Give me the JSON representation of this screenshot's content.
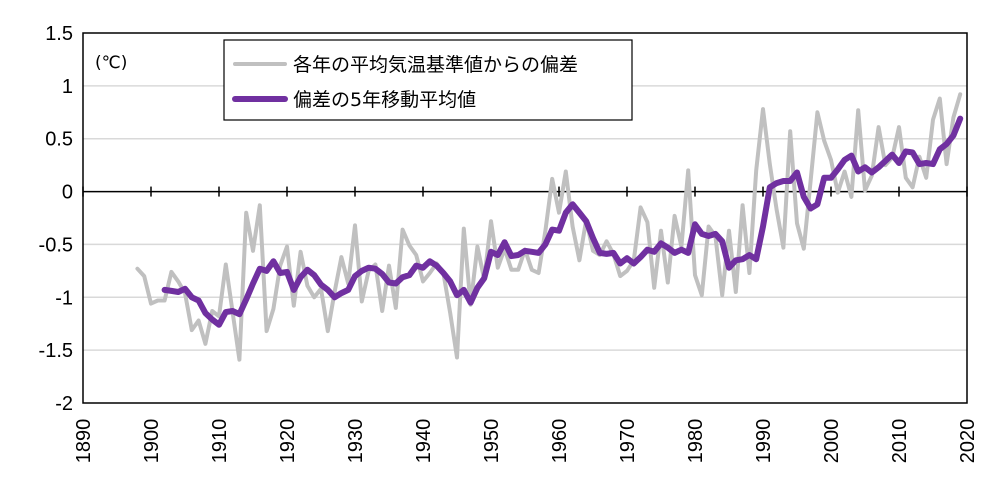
{
  "chart_data": {
    "type": "line",
    "unit_label": "(℃)",
    "xlim": [
      1890,
      2020
    ],
    "ylim": [
      -2,
      1.5
    ],
    "x_ticks": [
      1890,
      1900,
      1910,
      1920,
      1930,
      1940,
      1950,
      1960,
      1970,
      1980,
      1990,
      2000,
      2010,
      2020
    ],
    "y_ticks": [
      1.5,
      1,
      0.5,
      0,
      -0.5,
      -1,
      -1.5,
      -2
    ],
    "grid": true,
    "legend_position": "top-center",
    "series": [
      {
        "name": "各年の平均気温基準値からの偏差",
        "color": "#c0c0c0",
        "x": [
          1898,
          1899,
          1900,
          1901,
          1902,
          1903,
          1904,
          1905,
          1906,
          1907,
          1908,
          1909,
          1910,
          1911,
          1912,
          1913,
          1914,
          1915,
          1916,
          1917,
          1918,
          1919,
          1920,
          1921,
          1922,
          1923,
          1924,
          1925,
          1926,
          1927,
          1928,
          1929,
          1930,
          1931,
          1932,
          1933,
          1934,
          1935,
          1936,
          1937,
          1938,
          1939,
          1940,
          1941,
          1942,
          1943,
          1944,
          1945,
          1946,
          1947,
          1948,
          1949,
          1950,
          1951,
          1952,
          1953,
          1954,
          1955,
          1956,
          1957,
          1958,
          1959,
          1960,
          1961,
          1962,
          1963,
          1964,
          1965,
          1966,
          1967,
          1968,
          1969,
          1970,
          1971,
          1972,
          1973,
          1974,
          1975,
          1976,
          1977,
          1978,
          1979,
          1980,
          1981,
          1982,
          1983,
          1984,
          1985,
          1986,
          1987,
          1988,
          1989,
          1990,
          1991,
          1992,
          1993,
          1994,
          1995,
          1996,
          1997,
          1998,
          1999,
          2000,
          2001,
          2002,
          2003,
          2004,
          2005,
          2006,
          2007,
          2008,
          2009,
          2010,
          2011,
          2012,
          2013,
          2014,
          2015,
          2016,
          2017,
          2018,
          2019
        ],
        "values": [
          -0.73,
          -0.8,
          -1.06,
          -1.03,
          -1.03,
          -0.76,
          -0.85,
          -0.96,
          -1.31,
          -1.22,
          -1.44,
          -1.13,
          -1.18,
          -0.69,
          -1.14,
          -1.59,
          -0.2,
          -0.56,
          -0.13,
          -1.32,
          -1.11,
          -0.7,
          -0.52,
          -1.08,
          -0.57,
          -0.89,
          -1.0,
          -0.92,
          -1.32,
          -0.95,
          -0.62,
          -0.87,
          -0.32,
          -1.04,
          -0.75,
          -0.69,
          -1.13,
          -0.7,
          -1.1,
          -0.36,
          -0.51,
          -0.6,
          -0.85,
          -0.77,
          -0.68,
          -0.77,
          -1.15,
          -1.57,
          -0.35,
          -1.07,
          -0.52,
          -0.83,
          -0.28,
          -0.72,
          -0.54,
          -0.74,
          -0.74,
          -0.55,
          -0.74,
          -0.77,
          -0.37,
          0.12,
          -0.2,
          0.19,
          -0.33,
          -0.65,
          -0.27,
          -0.56,
          -0.6,
          -0.47,
          -0.59,
          -0.8,
          -0.75,
          -0.65,
          -0.15,
          -0.29,
          -0.91,
          -0.37,
          -0.86,
          -0.23,
          -0.52,
          0.2,
          -0.79,
          -0.98,
          -0.33,
          -0.42,
          -0.98,
          -0.37,
          -0.95,
          -0.13,
          -0.77,
          0.2,
          0.78,
          0.26,
          -0.17,
          -0.53,
          0.57,
          -0.3,
          -0.54,
          0.1,
          0.75,
          0.48,
          0.3,
          -0.01,
          0.19,
          -0.05,
          0.77,
          0.01,
          0.15,
          0.61,
          0.25,
          0.32,
          0.61,
          0.13,
          0.04,
          0.33,
          0.13,
          0.68,
          0.88,
          0.26,
          0.7,
          0.92
        ]
      },
      {
        "name": "偏差の5年移動平均値",
        "color": "#7030a0",
        "x": [
          1902,
          1903,
          1904,
          1905,
          1906,
          1907,
          1908,
          1909,
          1910,
          1911,
          1912,
          1913,
          1914,
          1915,
          1916,
          1917,
          1918,
          1919,
          1920,
          1921,
          1922,
          1923,
          1924,
          1925,
          1926,
          1927,
          1928,
          1929,
          1930,
          1931,
          1932,
          1933,
          1934,
          1935,
          1936,
          1937,
          1938,
          1939,
          1940,
          1941,
          1942,
          1943,
          1944,
          1945,
          1946,
          1947,
          1948,
          1949,
          1950,
          1951,
          1952,
          1953,
          1954,
          1955,
          1956,
          1957,
          1958,
          1959,
          1960,
          1961,
          1962,
          1963,
          1964,
          1965,
          1966,
          1967,
          1968,
          1969,
          1970,
          1971,
          1972,
          1973,
          1974,
          1975,
          1976,
          1977,
          1978,
          1979,
          1980,
          1981,
          1982,
          1983,
          1984,
          1985,
          1986,
          1987,
          1988,
          1989,
          1990,
          1991,
          1992,
          1993,
          1994,
          1995,
          1996,
          1997,
          1998,
          1999,
          2000,
          2001,
          2002,
          2003,
          2004,
          2005,
          2006,
          2007,
          2008,
          2009,
          2010,
          2011,
          2012,
          2013,
          2014,
          2015,
          2016,
          2017,
          2018,
          2019
        ],
        "values": [
          -0.93,
          -0.94,
          -0.95,
          -0.92,
          -1.0,
          -1.03,
          -1.15,
          -1.21,
          -1.26,
          -1.14,
          -1.13,
          -1.16,
          -1.02,
          -0.87,
          -0.73,
          -0.75,
          -0.66,
          -0.77,
          -0.76,
          -0.93,
          -0.81,
          -0.74,
          -0.79,
          -0.88,
          -0.93,
          -1.0,
          -0.96,
          -0.93,
          -0.8,
          -0.75,
          -0.72,
          -0.73,
          -0.78,
          -0.86,
          -0.87,
          -0.81,
          -0.79,
          -0.7,
          -0.72,
          -0.66,
          -0.7,
          -0.77,
          -0.85,
          -0.98,
          -0.93,
          -1.05,
          -0.91,
          -0.82,
          -0.57,
          -0.6,
          -0.48,
          -0.61,
          -0.6,
          -0.56,
          -0.57,
          -0.58,
          -0.5,
          -0.36,
          -0.37,
          -0.2,
          -0.12,
          -0.2,
          -0.28,
          -0.44,
          -0.58,
          -0.59,
          -0.58,
          -0.68,
          -0.63,
          -0.68,
          -0.62,
          -0.55,
          -0.57,
          -0.49,
          -0.53,
          -0.58,
          -0.55,
          -0.58,
          -0.31,
          -0.4,
          -0.42,
          -0.4,
          -0.47,
          -0.72,
          -0.65,
          -0.64,
          -0.6,
          -0.64,
          -0.33,
          0.04,
          0.08,
          0.1,
          0.1,
          0.18,
          -0.05,
          -0.16,
          -0.12,
          0.13,
          0.13,
          0.21,
          0.3,
          0.34,
          0.19,
          0.23,
          0.18,
          0.23,
          0.29,
          0.35,
          0.27,
          0.38,
          0.37,
          0.26,
          0.27,
          0.26,
          0.4,
          0.45,
          0.53,
          0.69
        ]
      }
    ]
  },
  "colors": {
    "axis": "#000000",
    "grid": "#d9d9d9",
    "zero_line": "#000000"
  }
}
